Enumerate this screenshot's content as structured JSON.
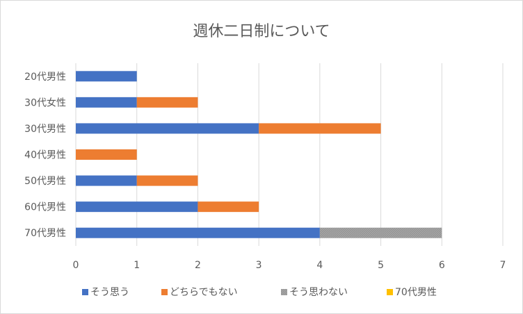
{
  "chart_data": {
    "type": "bar",
    "orientation": "horizontal",
    "stacked": true,
    "title": "週休二日制について",
    "xlabel": "",
    "ylabel": "",
    "xlim": [
      0,
      7
    ],
    "xticks": [
      0,
      1,
      2,
      3,
      4,
      5,
      6,
      7
    ],
    "grid": "vertical",
    "legend_position": "bottom",
    "categories": [
      "20代男性",
      "30代女性",
      "30代男性",
      "40代男性",
      "50代男性",
      "60代男性",
      "70代男性"
    ],
    "series": [
      {
        "name": "そう思う",
        "color": "#4472c4",
        "values": [
          1,
          1,
          3,
          0,
          1,
          2,
          4
        ]
      },
      {
        "name": "どちらでもない",
        "color": "#ed7d31",
        "values": [
          0,
          1,
          2,
          1,
          1,
          1,
          0
        ]
      },
      {
        "name": "そう思わない",
        "color": "#a5a5a5",
        "values": [
          0,
          0,
          0,
          0,
          0,
          0,
          2
        ]
      },
      {
        "name": "70代男性",
        "color": "#ffc000",
        "values": [
          0,
          0,
          0,
          0,
          0,
          0,
          0
        ]
      }
    ]
  }
}
